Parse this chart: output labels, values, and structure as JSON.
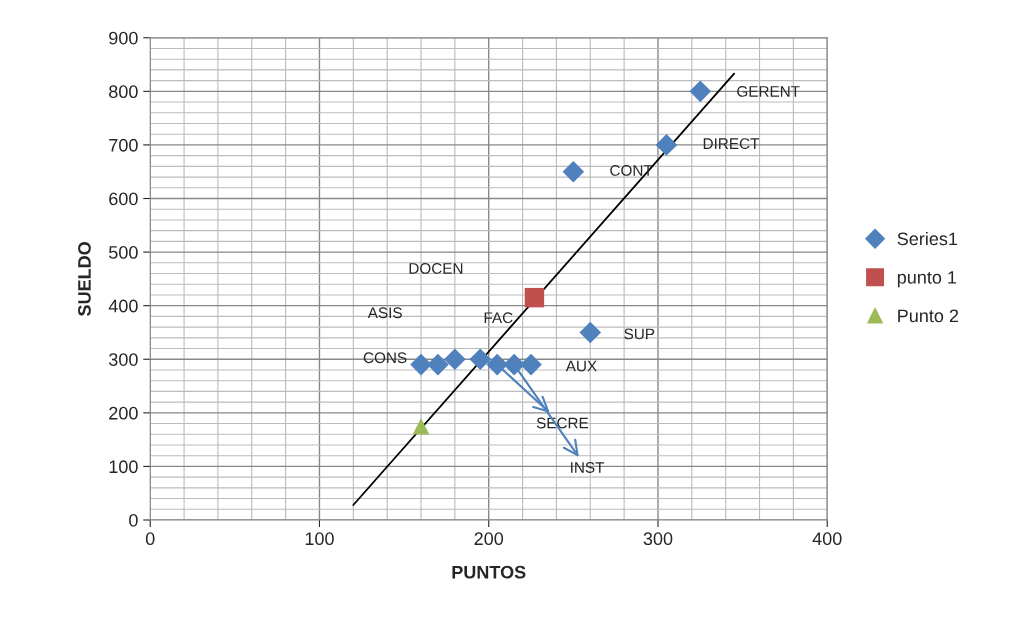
{
  "chart_data": {
    "type": "scatter",
    "xlabel": "PUNTOS",
    "ylabel": "SUELDO",
    "xlim": [
      0,
      400
    ],
    "xticks": [
      0,
      100,
      200,
      300,
      400
    ],
    "ylim": [
      0,
      900
    ],
    "yticks": [
      0,
      100,
      200,
      300,
      400,
      500,
      600,
      700,
      800,
      900
    ],
    "grid": true,
    "legend": "right",
    "series": [
      {
        "name": "Series1",
        "marker": "diamond",
        "color": "#4f81bd",
        "x": [
          160,
          170,
          180,
          195,
          205,
          215,
          225,
          250,
          260,
          305,
          325
        ],
        "values": [
          290,
          290,
          300,
          300,
          290,
          290,
          290,
          650,
          350,
          700,
          800
        ]
      },
      {
        "name": "punto 1",
        "marker": "square",
        "color": "#c0504d",
        "x": [
          227
        ],
        "values": [
          415
        ]
      },
      {
        "name": "Punto 2",
        "marker": "triangle",
        "color": "#9bbb59",
        "x": [
          160
        ],
        "values": [
          175
        ]
      },
      {
        "type": "line",
        "color": "#000000",
        "x": [
          120,
          345
        ],
        "values": [
          28,
          833
        ]
      }
    ],
    "annotations": [
      {
        "text": "CONS",
        "x": 160,
        "y": 290
      },
      "ASIS",
      "DOCEN",
      {
        "text": "FAC",
        "x": 195,
        "y": 300
      },
      {
        "text": "SECRE",
        "x": 205,
        "y": 290
      },
      {
        "text": "INST",
        "x": 215,
        "y": 290
      },
      {
        "text": "AUX",
        "x": 225,
        "y": 290
      },
      {
        "text": "CONT",
        "x": 250,
        "y": 650
      },
      {
        "text": "SUP",
        "x": 260,
        "y": 350
      },
      {
        "text": "DIRECT",
        "x": 305,
        "y": 700
      },
      {
        "text": "GERENT",
        "x": 325,
        "y": 800
      }
    ]
  }
}
